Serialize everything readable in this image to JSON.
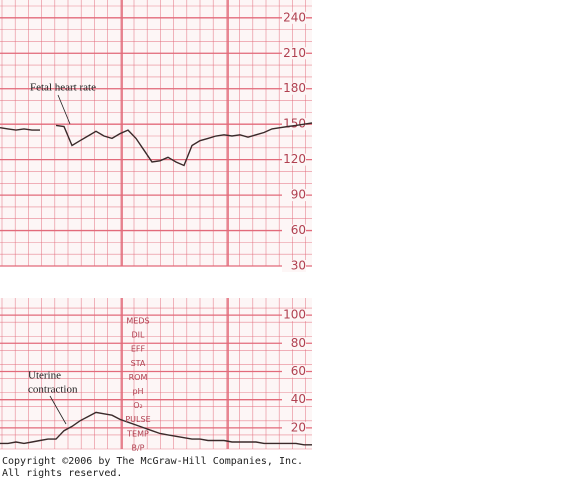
{
  "chart_data": [
    {
      "type": "line",
      "annotation": "Fetal heart rate",
      "series": [
        {
          "color": "#3a2a2a",
          "values": [
            147,
            146,
            145,
            146,
            145,
            145,
            null,
            149,
            148,
            132,
            136,
            140,
            144,
            140,
            138,
            142,
            145,
            138,
            128,
            118,
            119,
            122,
            118,
            115,
            132,
            136,
            138,
            140,
            141,
            140,
            141,
            139,
            141,
            143,
            146,
            147,
            148,
            149,
            150,
            151
          ]
        }
      ],
      "ylim": [
        30,
        250
      ],
      "yticks": [
        30,
        60,
        90,
        120,
        150,
        180,
        210,
        240
      ],
      "grid": true,
      "grid_color": "#e26a7a"
    },
    {
      "type": "line",
      "annotation": [
        "Uterine",
        "contraction"
      ],
      "labels_column": [
        "MEDS",
        "DIL",
        "EFF",
        "STA",
        "ROM",
        "pH",
        "O₂",
        "PULSE",
        "TEMP",
        "B/P"
      ],
      "series": [
        {
          "color": "#3a2a2a",
          "values": [
            9,
            9,
            10,
            9,
            10,
            11,
            12,
            12,
            18,
            21,
            25,
            28,
            31,
            30,
            29,
            26,
            24,
            22,
            20,
            18,
            16,
            15,
            14,
            13,
            12,
            12,
            11,
            11,
            11,
            10,
            10,
            10,
            10,
            9,
            9,
            9,
            9,
            9,
            8,
            8
          ]
        }
      ],
      "ylim": [
        5,
        110
      ],
      "yticks": [
        20,
        40,
        60,
        80,
        100
      ],
      "grid": true,
      "grid_color": "#e26a7a"
    }
  ],
  "footer": [
    "Copyright ©2006 by The McGraw-Hill Companies, Inc.",
    "All rights reserved."
  ]
}
